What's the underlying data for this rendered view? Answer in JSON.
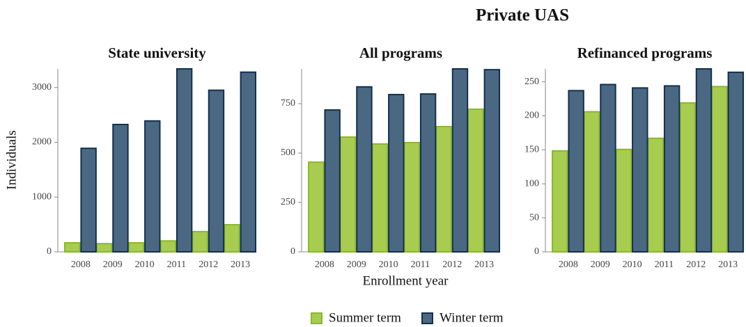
{
  "title": "Private UAS",
  "xlabel": "Enrollment year",
  "legend": [
    {
      "name": "Summer term",
      "color": "#a8cc50"
    },
    {
      "name": "Winter term",
      "color": "#4b6883"
    }
  ],
  "chart_data": [
    {
      "type": "bar",
      "title": "State university",
      "ylabel": "Individuals",
      "categories": [
        "2008",
        "2009",
        "2010",
        "2011",
        "2012",
        "2013"
      ],
      "series": [
        {
          "values": [
            165,
            150,
            165,
            200,
            370,
            495
          ]
        },
        {
          "values": [
            1890,
            2325,
            2390,
            3340,
            2950,
            3280
          ]
        }
      ],
      "ylim": [
        0,
        3340
      ],
      "yticks": [
        0,
        1000,
        2000,
        3000
      ]
    },
    {
      "type": "bar",
      "title": "All programs",
      "categories": [
        "2008",
        "2009",
        "2010",
        "2011",
        "2012",
        "2013"
      ],
      "series": [
        {
          "values": [
            454,
            581,
            546,
            553,
            634,
            722
          ]
        },
        {
          "values": [
            718,
            835,
            796,
            799,
            926,
            922
          ]
        }
      ],
      "ylim": [
        0,
        926
      ],
      "yticks": [
        0,
        250,
        500,
        750
      ]
    },
    {
      "type": "bar",
      "title": "Refinanced programs",
      "categories": [
        "2008",
        "2009",
        "2010",
        "2011",
        "2012",
        "2013"
      ],
      "series": [
        {
          "values": [
            148.5,
            206,
            150.6,
            167,
            219,
            243
          ]
        },
        {
          "values": [
            237,
            246,
            241,
            244,
            269,
            264
          ]
        }
      ],
      "ylim": [
        0,
        269
      ],
      "yticks": [
        0,
        50,
        100,
        150,
        200,
        250
      ]
    }
  ]
}
